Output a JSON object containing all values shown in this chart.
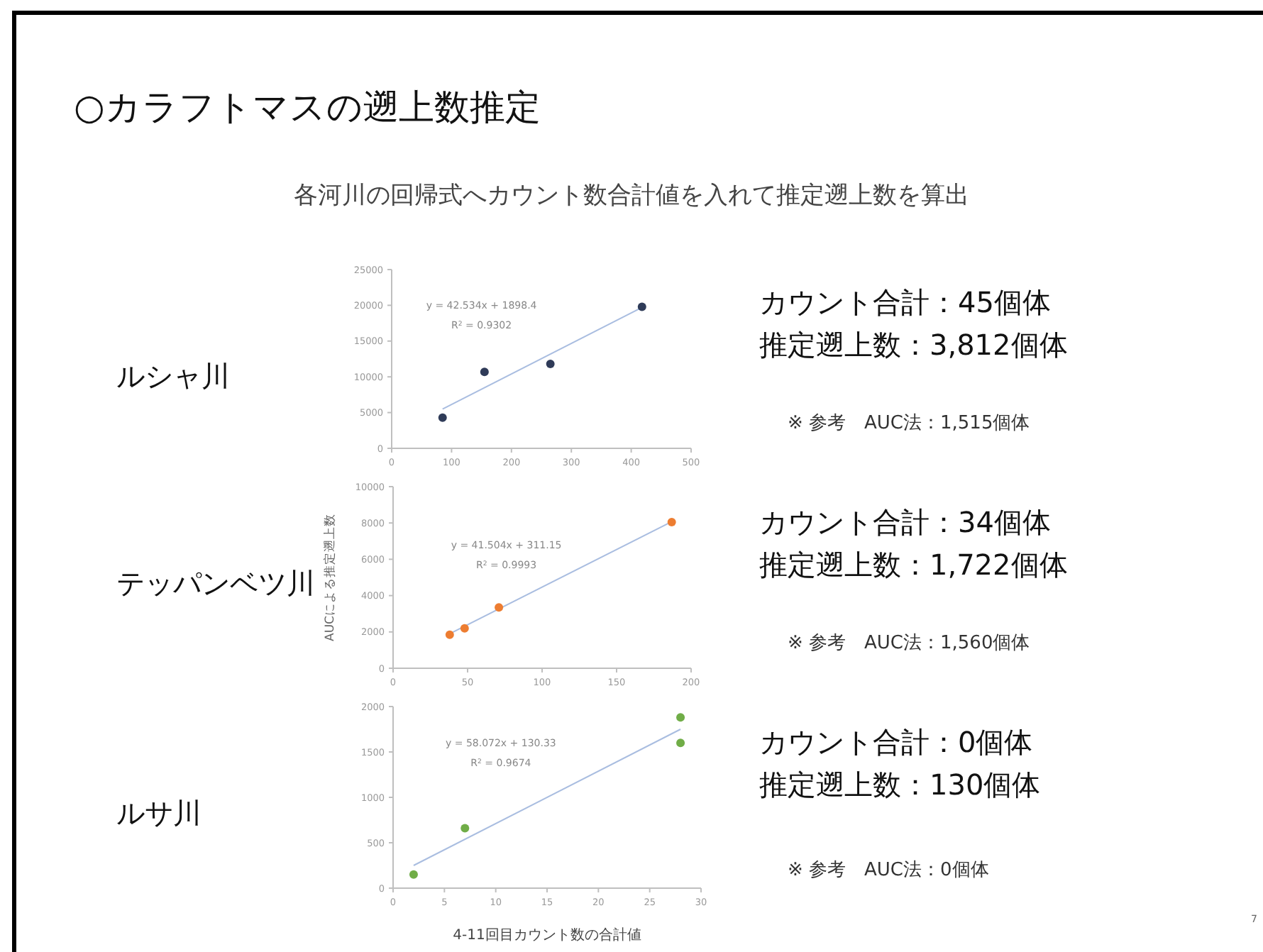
{
  "chart_data": [
    {
      "type": "scatter",
      "title": "○カラフトマスの遡上数推定",
      "subtitle": "各河川の回帰式へカウント数合計値を入れて推定遡上数を算出",
      "xlim": [
        0,
        500
      ],
      "xticks": [
        0,
        100,
        200,
        300,
        400,
        500
      ],
      "ylim": [
        0,
        25000
      ],
      "yticks": [
        0,
        5000,
        10000,
        15000,
        20000,
        25000
      ],
      "series": [
        {
          "color": "#2f3b58",
          "marker": "circle",
          "x": [
            85,
            155,
            265,
            418
          ],
          "values": [
            4300,
            10700,
            11800,
            19800
          ]
        },
        {
          "type": "line",
          "color": "#a9bde0",
          "x": [
            85,
            418
          ],
          "values": [
            5500,
            19700
          ]
        }
      ],
      "annotations": [
        "ルシャ川",
        "y = 42.534x + 1898.4",
        "R$^{2}$ = 0.9302",
        "カウント合計：45個体",
        "推定遡上数：3,812個体",
        "※ 参考　AUC法：1,515個体"
      ]
    },
    {
      "type": "scatter",
      "ylabel": "AUCによる推定遡上数",
      "xlim": [
        0,
        200
      ],
      "xticks": [
        0,
        50,
        100,
        150,
        200
      ],
      "ylim": [
        0,
        10000
      ],
      "yticks": [
        0,
        2000,
        4000,
        6000,
        8000,
        10000
      ],
      "series": [
        {
          "color": "#ed7d31",
          "marker": "circle",
          "x": [
            38,
            48,
            71,
            187
          ],
          "values": [
            1850,
            2200,
            3350,
            8050
          ]
        },
        {
          "type": "line",
          "color": "#a9bde0",
          "x": [
            38,
            187
          ],
          "values": [
            1900,
            8070
          ]
        }
      ],
      "annotations": [
        "テッパンベツ川",
        "y = 41.504x + 311.15",
        "R$^{2}$ = 0.9993",
        "カウント合計：34個体",
        "推定遡上数：1,722個体",
        "※ 参考　AUC法：1,560個体"
      ]
    },
    {
      "type": "scatter",
      "xlabel": "4-11回目カウント数の合計値",
      "xlim": [
        0,
        30
      ],
      "xticks": [
        0,
        5,
        10,
        15,
        20,
        25,
        30
      ],
      "ylim": [
        0,
        2000
      ],
      "yticks": [
        0,
        500,
        1000,
        1500,
        2000
      ],
      "series": [
        {
          "color": "#70ad47",
          "marker": "circle",
          "x": [
            2,
            7,
            28,
            28
          ],
          "values": [
            150,
            660,
            1880,
            1600
          ]
        },
        {
          "type": "line",
          "color": "#a9bde0",
          "x": [
            2,
            28
          ],
          "values": [
            250,
            1750
          ]
        }
      ],
      "annotations": [
        "ルサ川",
        "y = 58.072x + 130.33",
        "R$^{2}$ = 0.9674",
        "カウント合計：0個体",
        "推定遡上数：130個体",
        "※ 参考　AUC法：0個体",
        "7"
      ]
    }
  ]
}
